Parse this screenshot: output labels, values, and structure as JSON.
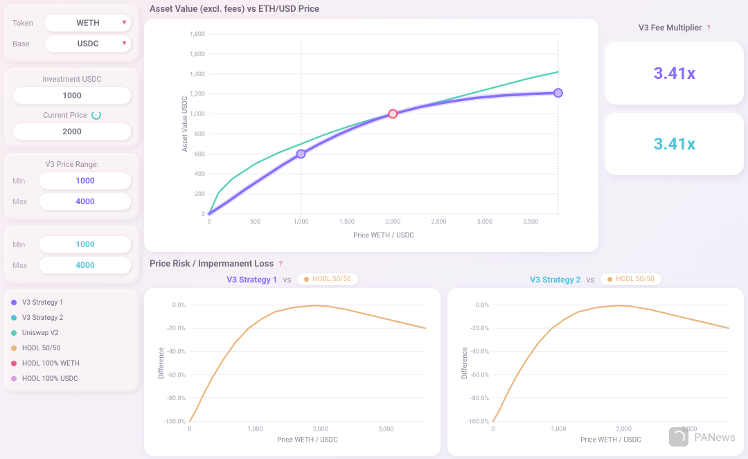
{
  "sidebar": {
    "token_label": "Token",
    "token_value": "WETH",
    "base_label": "Base",
    "base_value": "USDC",
    "investment_label": "Investment USDC",
    "investment_value": "1000",
    "current_price_label": "Current Price",
    "current_price_value": "2000",
    "range_title": "V3 Price Range:",
    "range1": {
      "min_label": "Min",
      "min_value": "1000",
      "max_label": "Max",
      "max_value": "4000",
      "color": "#8a6cff"
    },
    "range2": {
      "min_label": "Min",
      "min_value": "1000",
      "max_label": "Max",
      "max_value": "4000",
      "color": "#4fc3d9"
    },
    "legend": [
      {
        "label": "V3 Strategy 1",
        "color": "#8a6cff"
      },
      {
        "label": "V3 Strategy 2",
        "color": "#4fc3d9"
      },
      {
        "label": "Uniswap V2",
        "color": "#58d0b7"
      },
      {
        "label": "HODL 50/50",
        "color": "#eab57a"
      },
      {
        "label": "HODL 100% WETH",
        "color": "#e95a8c"
      },
      {
        "label": "HODL 100% USDC",
        "color": "#d99ee5"
      }
    ]
  },
  "main_chart": {
    "title": "Asset Value (excl. fees) vs ETH/USD Price",
    "x_label": "Price WETH / USDC",
    "y_label": "Asset Value USDC",
    "x_ticks": [
      0,
      500,
      1000,
      1500,
      2000,
      2500,
      3000,
      3500
    ],
    "y_ticks": [
      0,
      200,
      400,
      600,
      800,
      1000,
      1200,
      1400,
      1600,
      1800
    ],
    "x_max": 3800,
    "y_max": 1800,
    "series": [
      {
        "name": "Uniswap V2",
        "color": "#58d0b7",
        "width": 2.4,
        "points": [
          [
            0,
            0
          ],
          [
            100,
            210
          ],
          [
            250,
            350
          ],
          [
            500,
            500
          ],
          [
            750,
            610
          ],
          [
            1000,
            700
          ],
          [
            1250,
            790
          ],
          [
            1500,
            870
          ],
          [
            1750,
            940
          ],
          [
            2000,
            1000
          ],
          [
            2250,
            1060
          ],
          [
            2500,
            1120
          ],
          [
            2750,
            1180
          ],
          [
            3000,
            1240
          ],
          [
            3250,
            1300
          ],
          [
            3500,
            1360
          ],
          [
            3800,
            1420
          ]
        ]
      },
      {
        "name": "V3 Strategy 1",
        "color": "#8a6cff",
        "width": 3.5,
        "glow": true,
        "points": [
          [
            0,
            0
          ],
          [
            200,
            120
          ],
          [
            400,
            250
          ],
          [
            600,
            370
          ],
          [
            800,
            490
          ],
          [
            1000,
            600
          ],
          [
            1200,
            700
          ],
          [
            1400,
            790
          ],
          [
            1600,
            870
          ],
          [
            1800,
            940
          ],
          [
            2000,
            1000
          ],
          [
            2300,
            1070
          ],
          [
            2600,
            1120
          ],
          [
            2900,
            1160
          ],
          [
            3200,
            1185
          ],
          [
            3500,
            1200
          ],
          [
            3800,
            1210
          ]
        ]
      }
    ],
    "markers": [
      {
        "x": 1000,
        "y": 600,
        "stroke": "#8a6cff",
        "fill": "#c9b8ff"
      },
      {
        "x": 2000,
        "y": 1000,
        "stroke": "#ef5a77",
        "fill": "#ffd7de"
      },
      {
        "x": 3800,
        "y": 1210,
        "stroke": "#8a6cff",
        "fill": "#c9b8ff"
      }
    ],
    "drop_lines_x": [
      1000,
      3800
    ]
  },
  "fee_multiplier": {
    "title": "V3 Fee Multiplier",
    "cards": [
      {
        "value": "3.41x",
        "color": "#8a6cff"
      },
      {
        "value": "3.41x",
        "color": "#4fc3d9"
      }
    ]
  },
  "risk_section": {
    "title": "Price Risk / Impermanent Loss",
    "x_label": "Price WETH / USDC",
    "y_label": "Difference",
    "x_ticks": [
      0,
      1000,
      2000,
      3000
    ],
    "y_ticks": [
      -100,
      -80,
      -60,
      -40,
      -20,
      0
    ],
    "y_tick_labels": [
      "-100.0%",
      "-80.0%",
      "-60.0%",
      "-40.0%",
      "-20.0%",
      "0.0%"
    ],
    "x_max": 3600,
    "curve": [
      [
        0,
        -100
      ],
      [
        100,
        -90
      ],
      [
        200,
        -78
      ],
      [
        350,
        -62
      ],
      [
        500,
        -48
      ],
      [
        700,
        -32
      ],
      [
        900,
        -20
      ],
      [
        1100,
        -12
      ],
      [
        1300,
        -6
      ],
      [
        1600,
        -2
      ],
      [
        1900,
        -0.5
      ],
      [
        2100,
        -1
      ],
      [
        2400,
        -4
      ],
      [
        2700,
        -8
      ],
      [
        3000,
        -12
      ],
      [
        3300,
        -16
      ],
      [
        3600,
        -20
      ]
    ],
    "charts": [
      {
        "heading": "V3 Strategy 1",
        "heading_color": "#8a6cff",
        "chip": "HODL 50/50",
        "chip_dot": "#eab57a",
        "line_color": "#eab57a"
      },
      {
        "heading": "V3 Strategy 2",
        "heading_color": "#4fc3d9",
        "chip": "HODL 50/50",
        "chip_dot": "#eab57a",
        "line_color": "#eab57a"
      }
    ]
  },
  "watermark": "PANews"
}
